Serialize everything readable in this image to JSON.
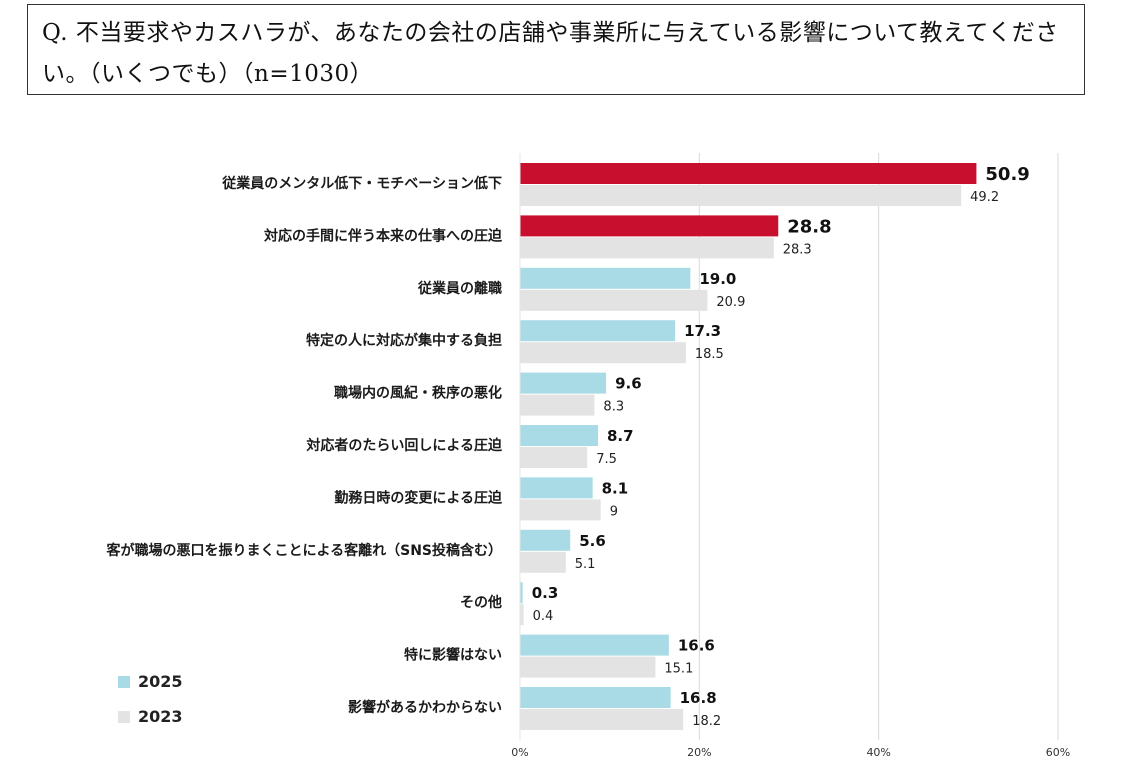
{
  "question": {
    "text": "Q. 不当要求やカスハラが、あなたの会社の店舗や事業所に与えている影響について教えてください。（いくつでも）（n=1030）"
  },
  "colors": {
    "highlight": "#c8102e",
    "series_2025": "#a8dbe6",
    "series_2023": "#e3e3e3",
    "grid": "#d9d9d9"
  },
  "chart_data": {
    "type": "bar",
    "orientation": "horizontal",
    "categories": [
      "従業員のメンタル低下・モチベーション低下",
      "対応の手間に伴う本来の仕事への圧迫",
      "従業員の離職",
      "特定の人に対応が集中する負担",
      "職場内の風紀・秩序の悪化",
      "対応者のたらい回しによる圧迫",
      "勤務日時の変更による圧迫",
      "客が職場の悪口を振りまくことによる客離れ（SNS投稿含む）",
      "その他",
      "特に影響はない",
      "影響があるかわからない"
    ],
    "series": [
      {
        "name": "2025",
        "values": [
          50.9,
          28.8,
          19.0,
          17.3,
          9.6,
          8.7,
          8.1,
          5.6,
          0.3,
          16.6,
          16.8
        ],
        "labels": [
          "50.9",
          "28.8",
          "19.0",
          "17.3",
          "9.6",
          "8.7",
          "8.1",
          "5.6",
          "0.3",
          "16.6",
          "16.8"
        ],
        "highlighted": [
          true,
          true,
          false,
          false,
          false,
          false,
          false,
          false,
          false,
          false,
          false
        ]
      },
      {
        "name": "2023",
        "values": [
          49.2,
          28.3,
          20.9,
          18.5,
          8.3,
          7.5,
          9,
          5.1,
          0.4,
          15.1,
          18.2
        ],
        "labels": [
          "49.2",
          "28.3",
          "20.9",
          "18.5",
          "8.3",
          "7.5",
          "9",
          "5.1",
          "0.4",
          "15.1",
          "18.2"
        ]
      }
    ],
    "x_ticks": [
      "0%",
      "20%",
      "40%",
      "60%"
    ],
    "xlim": [
      0,
      60
    ],
    "grid": true,
    "legend": {
      "position": "bottom-left",
      "entries": [
        "2025",
        "2023"
      ]
    }
  }
}
